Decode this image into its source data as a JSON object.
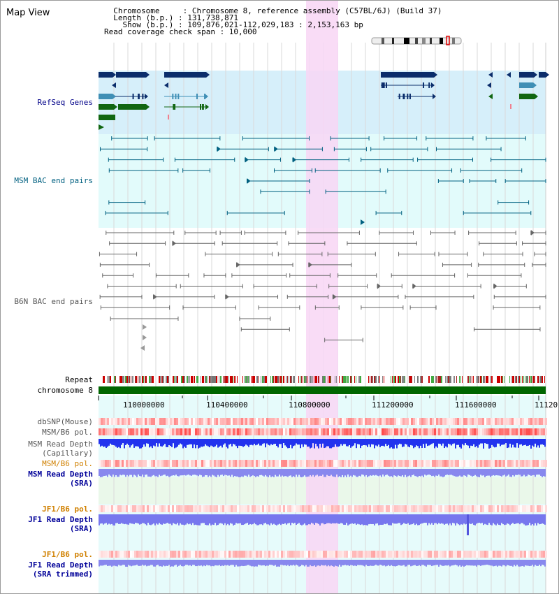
{
  "header": {
    "title": "Map View",
    "info_lines": [
      "  Chromosome     : Chromosome 8, reference assembly (C57BL/6J) (Build 37)",
      "  Length (b.p.) : 131,738,871",
      "    Show (b.p.) : 109,876,021-112,029,183 : 2,153,163 bp",
      "Read coverage check span : 10,000"
    ]
  },
  "colors": {
    "refseq_bg": "#d6effa",
    "bac_bg": "#e2fbfb",
    "highlight": "#f8d6f4",
    "refseq_label": "#000088",
    "msm_bac": "#006080",
    "b6n_bac": "#666666",
    "pol_label_orange": "#d08000",
    "depth_label_blue": "#000099",
    "chromosome_bar": "#006600"
  },
  "tracks": {
    "refseq_genes": "RefSeq Genes",
    "msm_bac": "MSM BAC end pairs",
    "b6n_bac": "B6N BAC end pairs",
    "repeat": "Repeat",
    "chromosome": "chromosome 8",
    "dbsnp": "dbSNP(Mouse)",
    "msm_b6_pol_1": "MSM/B6 pol.",
    "msm_depth_cap_1": "MSM Read Depth",
    "msm_depth_cap_2": "(Capillary)",
    "msm_b6_pol_2": "MSM/B6 pol.",
    "msm_depth_sra_1": "MSM Read Depth",
    "msm_depth_sra_2": "(SRA)",
    "jf1_b6_pol_1": "JF1/B6 pol.",
    "jf1_depth_sra_1": "JF1 Read Depth",
    "jf1_depth_sra_2": "(SRA)",
    "jf1_b6_pol_2": "JF1/B6 pol.",
    "jf1_depth_trim_1": "JF1 Read Depth",
    "jf1_depth_trim_2": "(SRA trimmed)"
  },
  "axis": {
    "ticks": [
      "110000000",
      "110400000",
      "110800000",
      "111200000",
      "111600000",
      "11120"
    ]
  }
}
